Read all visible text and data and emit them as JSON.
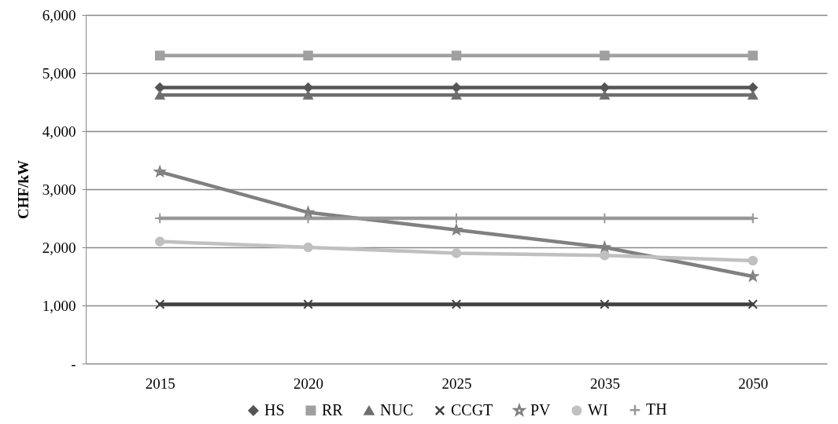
{
  "chart_data": {
    "type": "line",
    "ylabel": "CHF/kW",
    "categories": [
      "2015",
      "2020",
      "2025",
      "2035",
      "2050"
    ],
    "ylim": [
      0,
      6000
    ],
    "yticks": [
      {
        "value": 0,
        "label": "-"
      },
      {
        "value": 1000,
        "label": "1,000"
      },
      {
        "value": 2000,
        "label": "2,000"
      },
      {
        "value": 3000,
        "label": "3,000"
      },
      {
        "value": 4000,
        "label": "4,000"
      },
      {
        "value": 5000,
        "label": "5,000"
      },
      {
        "value": 6000,
        "label": "6,000"
      }
    ],
    "grid": "y",
    "legend": "bottom",
    "series": [
      {
        "name": "HS",
        "color": "#555555",
        "marker": "diamond",
        "values": [
          4750,
          4750,
          4750,
          4750,
          4750
        ]
      },
      {
        "name": "RR",
        "color": "#a0a0a0",
        "marker": "square",
        "values": [
          5300,
          5300,
          5300,
          5300,
          5300
        ]
      },
      {
        "name": "NUC",
        "color": "#6e6e6e",
        "marker": "triangle",
        "values": [
          4620,
          4620,
          4620,
          4620,
          4620
        ]
      },
      {
        "name": "CCGT",
        "color": "#404040",
        "marker": "cross",
        "values": [
          1020,
          1020,
          1020,
          1020,
          1020
        ]
      },
      {
        "name": "PV",
        "color": "#808080",
        "marker": "star",
        "values": [
          3300,
          2600,
          2300,
          2000,
          1500
        ]
      },
      {
        "name": "WI",
        "color": "#c0c0c0",
        "marker": "circle",
        "values": [
          2100,
          2000,
          1900,
          1860,
          1770
        ]
      },
      {
        "name": "TH",
        "color": "#989898",
        "marker": "plus",
        "values": [
          2500,
          2500,
          2500,
          2500,
          2500
        ]
      }
    ]
  }
}
